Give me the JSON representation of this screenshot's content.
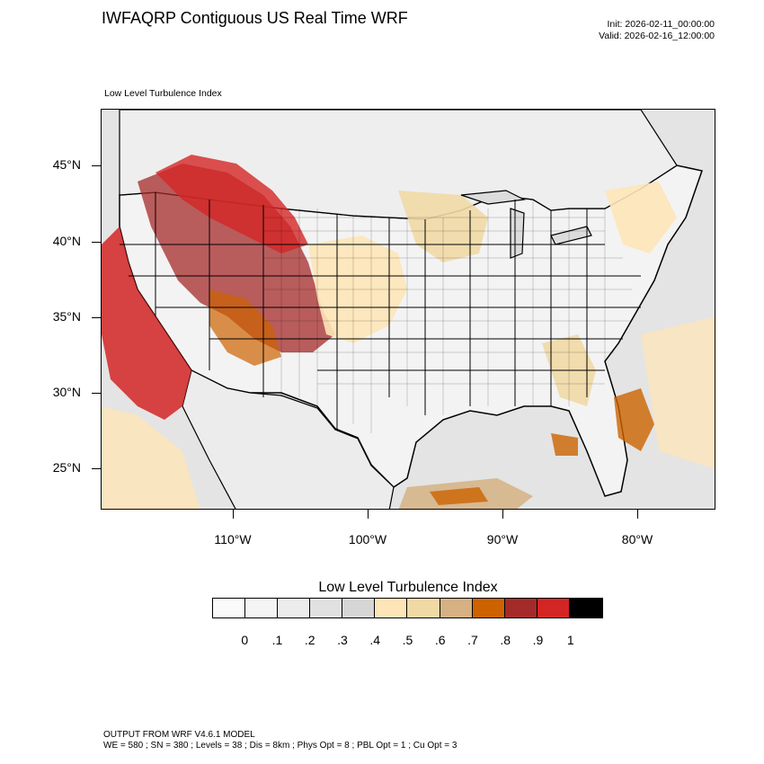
{
  "header": {
    "title": "IWFAQRP Contiguous US Real Time WRF",
    "init": "Init: 2026-02-11_00:00:00",
    "valid": "Valid: 2026-02-16_12:00:00"
  },
  "map": {
    "field_label": "Low Level Turbulence Index",
    "lat_labels": [
      "45°N",
      "40°N",
      "35°N",
      "30°N",
      "25°N"
    ],
    "lon_labels": [
      "110°W",
      "100°W",
      "90°W",
      "80°W"
    ],
    "colors": {
      "background": "#e9e9e9",
      "low": "#f4f4f4",
      "light_tan": "#fde5b8",
      "tan": "#f1d9a6",
      "brown_tan": "#d5b184",
      "orange": "#cc6300",
      "dark_red": "#a52a2a",
      "red": "#d42525"
    }
  },
  "colorbar": {
    "title": "Low Level Turbulence Index",
    "labels": [
      "0",
      ".1",
      ".2",
      ".3",
      ".4",
      ".5",
      ".6",
      ".7",
      ".8",
      ".9",
      "1"
    ],
    "colors": [
      "#fafafa",
      "#f4f4f4",
      "#ececec",
      "#e1e1e1",
      "#d6d6d6",
      "#fde5b8",
      "#f1d9a6",
      "#d5b184",
      "#cc6300",
      "#a52a2a",
      "#d42525",
      "#000000"
    ]
  },
  "footer": {
    "line1": "OUTPUT FROM WRF V4.6.1 MODEL",
    "line2": "WE = 580 ; SN = 380 ; Levels = 38 ; Dis = 8km ; Phys Opt = 8 ; PBL Opt = 1 ; Cu Opt = 3"
  }
}
